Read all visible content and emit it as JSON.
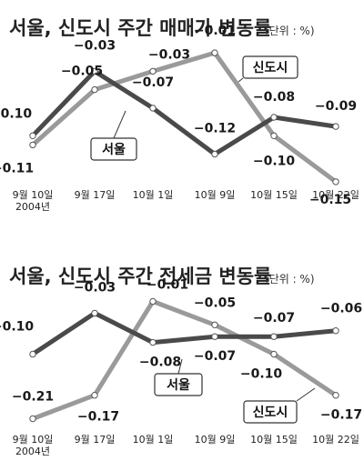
{
  "chart_data": [
    {
      "type": "line",
      "title": "서울, 신도시 주간 매매가 변동률",
      "unit_note": "(단위 : %)",
      "categories": [
        "9월 10일",
        "9월 17일",
        "10월 1일",
        "10월 9일",
        "10월 15일",
        "10월 22일"
      ],
      "first_category_sub": "2004년",
      "series": [
        {
          "name": "서울",
          "color": "#4a4a4a",
          "values": [
            -0.1,
            -0.03,
            -0.07,
            -0.12,
            -0.08,
            -0.09
          ],
          "labels": [
            "−0.10",
            "−0.03",
            "−0.07",
            "−0.12",
            "−0.08",
            "−0.09"
          ]
        },
        {
          "name": "신도시",
          "color": "#9a9a9a",
          "values": [
            -0.11,
            -0.05,
            -0.03,
            -0.01,
            -0.1,
            -0.15
          ],
          "labels": [
            "−0.11",
            "−0.05",
            "−0.03",
            "−0.01",
            "−0.10",
            "−0.15"
          ]
        }
      ],
      "ylim": [
        -0.16,
        0.0
      ],
      "grid": false,
      "legend": "inline labels"
    },
    {
      "type": "line",
      "title": "서울, 신도시 주간 전세금 변동률",
      "unit_note": "(단위 : %)",
      "categories": [
        "9월 10일",
        "9월 17일",
        "10월 1일",
        "10월 9일",
        "10월 15일",
        "10월 22일"
      ],
      "first_category_sub": "2004년",
      "series": [
        {
          "name": "서울",
          "color": "#4a4a4a",
          "values": [
            -0.1,
            -0.03,
            -0.08,
            -0.07,
            -0.07,
            -0.06
          ],
          "labels": [
            "−0.10",
            "−0.03",
            "−0.08",
            "−0.07",
            "−0.07",
            "−0.06"
          ]
        },
        {
          "name": "신도시",
          "color": "#9a9a9a",
          "values": [
            -0.21,
            -0.17,
            -0.01,
            -0.05,
            -0.1,
            -0.17
          ],
          "labels": [
            "−0.21",
            "−0.17",
            "−0.01",
            "−0.05",
            "−0.10",
            "−0.17"
          ]
        }
      ],
      "ylim": [
        -0.22,
        0.0
      ],
      "grid": false,
      "legend": "inline labels"
    }
  ]
}
